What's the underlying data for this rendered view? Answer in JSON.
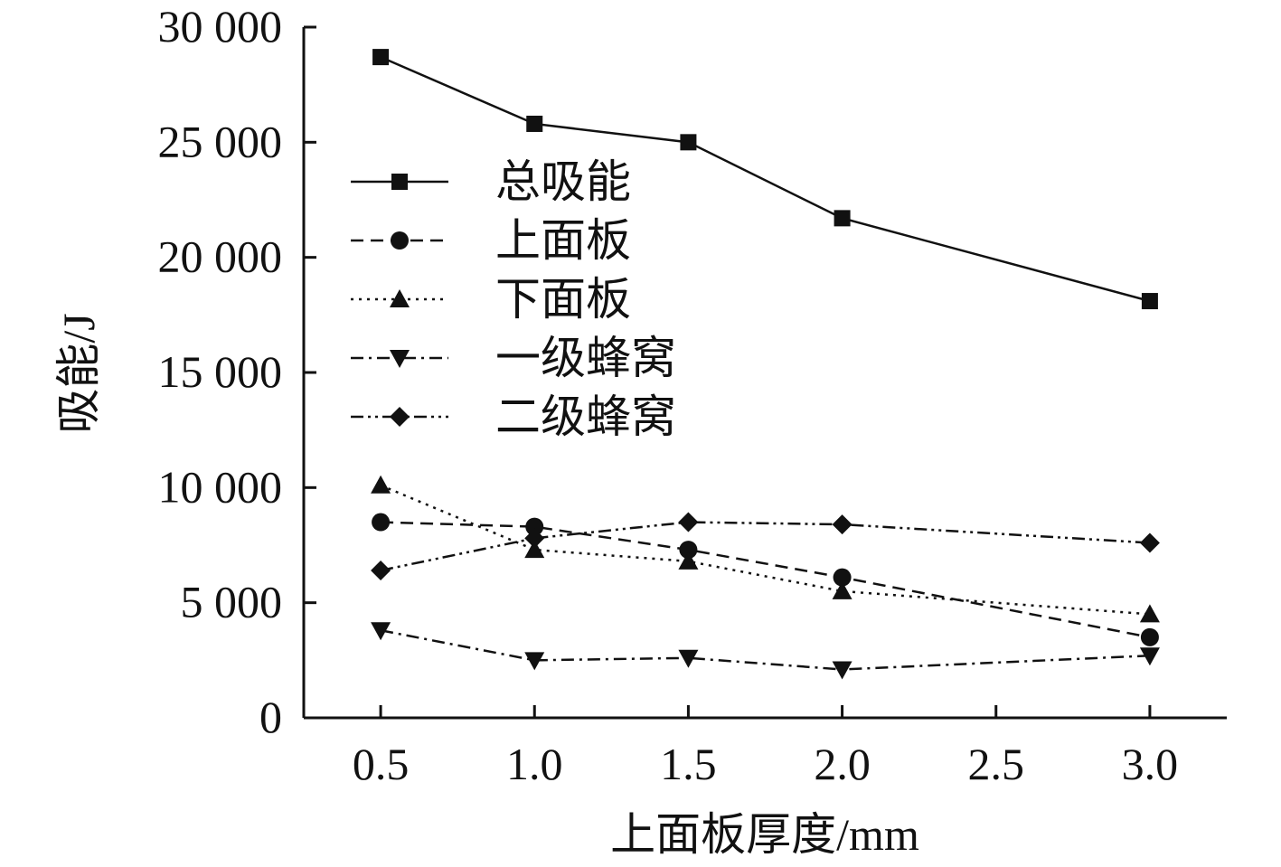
{
  "chart_data": {
    "type": "line",
    "title": "",
    "xlabel": "上面板厚度/mm",
    "ylabel": "吸能/J",
    "x": [
      0.5,
      1.0,
      1.5,
      2.0,
      3.0
    ],
    "xlim": [
      0.25,
      3.25
    ],
    "ylim": [
      0,
      30000
    ],
    "x_ticks": [
      0.5,
      1.0,
      1.5,
      2.0,
      2.5,
      3.0
    ],
    "x_tick_labels": [
      "0.5",
      "1.0",
      "1.5",
      "2.0",
      "2.5",
      "3.0"
    ],
    "y_ticks": [
      0,
      5000,
      10000,
      15000,
      20000,
      25000,
      30000
    ],
    "y_tick_labels": [
      "0",
      "5 000",
      "10 000",
      "15 000",
      "20 000",
      "25 000",
      "30 000"
    ],
    "grid": false,
    "legend_position": "upper-left inside plot",
    "series": [
      {
        "name": "总吸能",
        "values": [
          28700,
          25800,
          25000,
          21700,
          18100
        ],
        "marker": "square",
        "line": "solid"
      },
      {
        "name": "上面板",
        "values": [
          8500,
          8300,
          7300,
          6100,
          3500
        ],
        "marker": "circle",
        "line": "dashed"
      },
      {
        "name": "下面板",
        "values": [
          10100,
          7300,
          6800,
          5500,
          4500
        ],
        "marker": "triangle-up",
        "line": "dotted"
      },
      {
        "name": "一级蜂窝",
        "values": [
          3800,
          2500,
          2600,
          2100,
          2700
        ],
        "marker": "triangle-down",
        "line": "dashdot"
      },
      {
        "name": "二级蜂窝",
        "values": [
          6400,
          7800,
          8500,
          8400,
          7600
        ],
        "marker": "diamond",
        "line": "dashdotdot"
      }
    ]
  }
}
